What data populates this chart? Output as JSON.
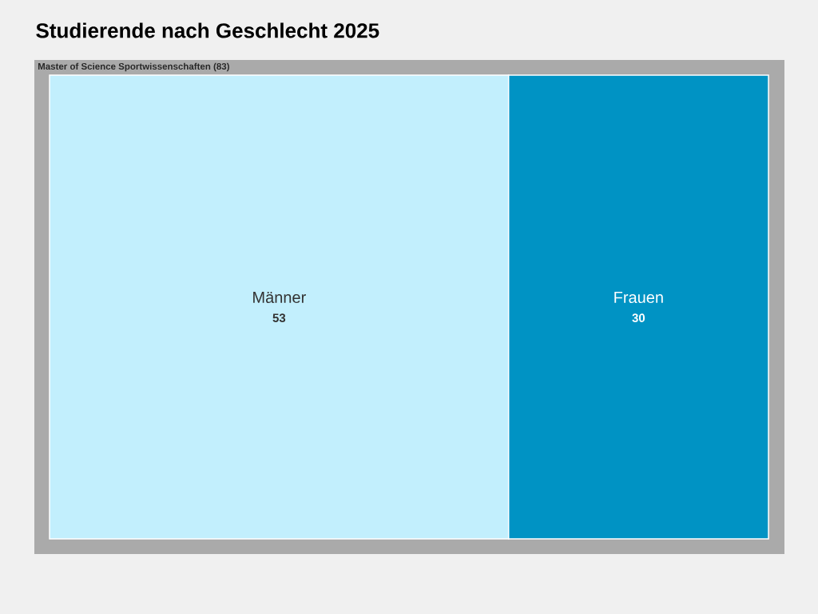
{
  "chart_data": {
    "type": "other",
    "title": "Studierende nach Geschlecht 2025",
    "annotations": [
      "Master of Science Sportwissenschaften (83)"
    ],
    "categories": [
      "Männer",
      "Frauen"
    ],
    "values": [
      53,
      30
    ],
    "colors": [
      "#c2effd",
      "#0093c4"
    ],
    "data_labels": true
  }
}
